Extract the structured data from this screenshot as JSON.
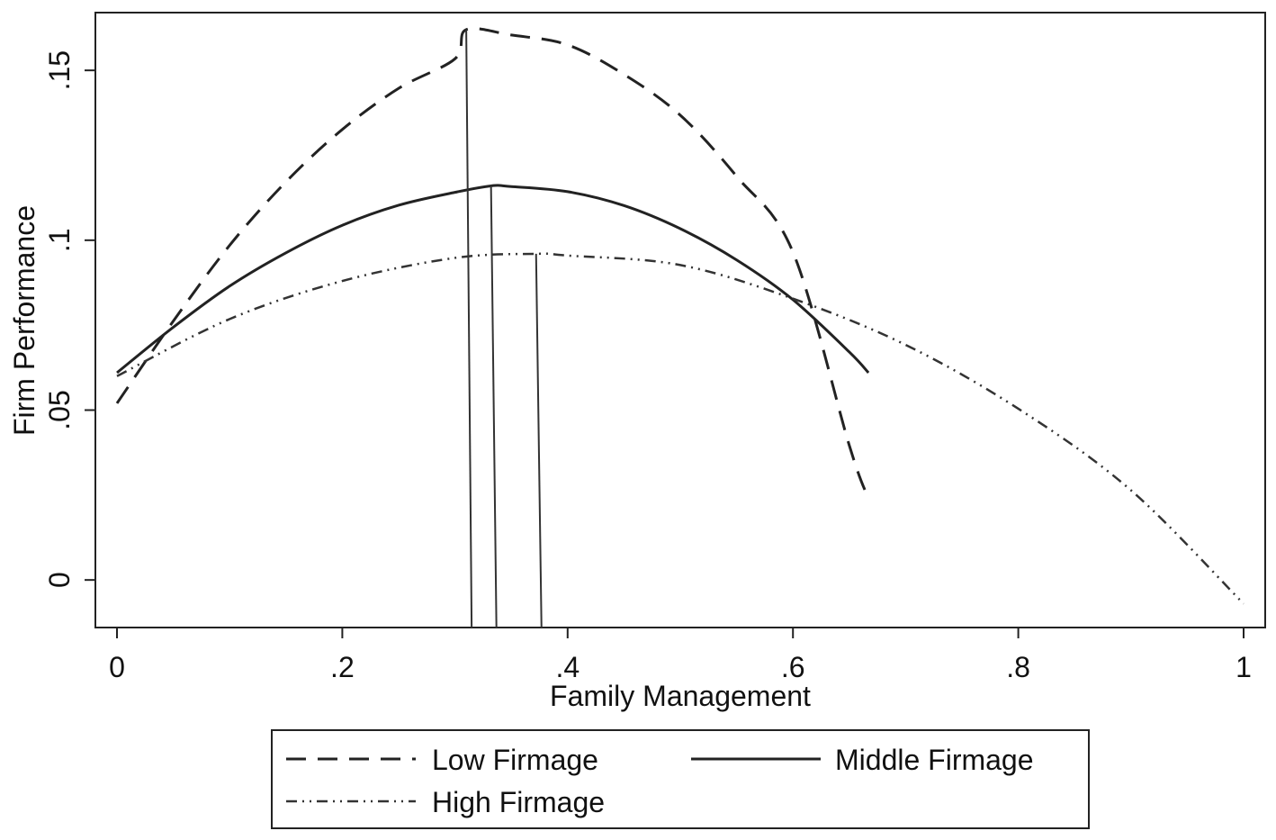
{
  "chart_data": {
    "type": "line",
    "title": "",
    "xlabel": "Family Management",
    "ylabel": "Firm Performance",
    "xlim": [
      0,
      1
    ],
    "ylim": [
      -0.014,
      0.167
    ],
    "x_ticks": [
      {
        "value": 0,
        "label": "0"
      },
      {
        "value": 0.2,
        "label": ".2"
      },
      {
        "value": 0.4,
        "label": ".4"
      },
      {
        "value": 0.6,
        "label": ".6"
      },
      {
        "value": 0.8,
        "label": ".8"
      },
      {
        "value": 1,
        "label": "1"
      }
    ],
    "y_ticks": [
      {
        "value": 0,
        "label": "0"
      },
      {
        "value": 0.05,
        "label": ".05"
      },
      {
        "value": 0.1,
        "label": ".1"
      },
      {
        "value": 0.15,
        "label": ".15"
      }
    ],
    "grid": false,
    "legend_position": "bottom",
    "series": [
      {
        "name": "Low Firmage",
        "style": "dashed",
        "color": "#222222",
        "x": [
          0,
          0.05,
          0.1,
          0.15,
          0.2,
          0.25,
          0.3,
          0.31,
          0.35,
          0.4,
          0.45,
          0.5,
          0.55,
          0.6,
          0.65,
          0.667
        ],
        "y": [
          0.052,
          0.0762,
          0.0985,
          0.1172,
          0.1326,
          0.1447,
          0.1534,
          0.162,
          0.1604,
          0.1575,
          0.1488,
          0.1368,
          0.1188,
          0.0965,
          0.0396,
          0.024
        ],
        "peak_x": 0.31
      },
      {
        "name": "Middle Firmage",
        "style": "solid",
        "color": "#222222",
        "x": [
          0,
          0.05,
          0.1,
          0.15,
          0.2,
          0.25,
          0.3,
          0.332,
          0.35,
          0.4,
          0.45,
          0.5,
          0.55,
          0.6,
          0.65,
          0.667
        ],
        "y": [
          0.061,
          0.0744,
          0.0865,
          0.0963,
          0.1044,
          0.1103,
          0.1141,
          0.116,
          0.1158,
          0.1143,
          0.1102,
          0.1034,
          0.0942,
          0.0825,
          0.0671,
          0.061
        ],
        "peak_x": 0.332
      },
      {
        "name": "High Firmage",
        "style": "dash-dot-dot",
        "color": "#333333",
        "x": [
          0,
          0.1,
          0.2,
          0.3,
          0.372,
          0.4,
          0.5,
          0.6,
          0.7,
          0.8,
          0.9,
          1.0
        ],
        "y": [
          0.06,
          0.0768,
          0.088,
          0.0948,
          0.096,
          0.0955,
          0.0927,
          0.0828,
          0.0692,
          0.0504,
          0.0264,
          -0.007
        ],
        "peak_x": 0.372
      }
    ]
  },
  "legend": {
    "items": [
      {
        "label": "Low Firmage",
        "style": "dashed"
      },
      {
        "label": "Middle Firmage",
        "style": "solid"
      },
      {
        "label": "High Firmage",
        "style": "dash-dot-dot"
      }
    ]
  }
}
